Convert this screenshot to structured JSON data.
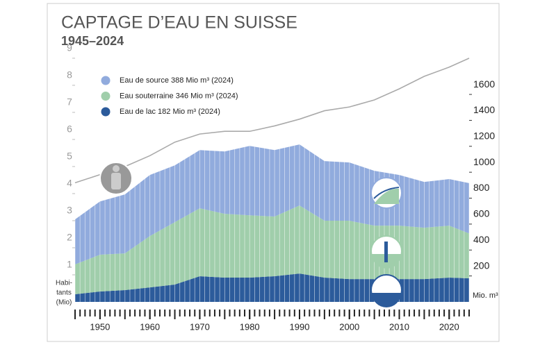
{
  "chart_data": {
    "type": "stacked_area",
    "title": "CAPTAGE D’EAU EN SUISSE",
    "subtitle": "1945–2024",
    "x": [
      1945,
      1950,
      1955,
      1960,
      1965,
      1970,
      1975,
      1980,
      1985,
      1990,
      1995,
      2000,
      2005,
      2010,
      2015,
      2020,
      2024
    ],
    "xlim": [
      1945,
      2024
    ],
    "xticks": [
      1950,
      1960,
      1970,
      1980,
      1990,
      2000,
      2010,
      2020
    ],
    "series": [
      {
        "name": "Eau de lac 182 Mio m³ (2024)",
        "color": "#2c5b9b",
        "values": [
          59,
          80,
          91,
          112,
          134,
          198,
          187,
          187,
          198,
          219,
          187,
          176,
          176,
          176,
          176,
          187,
          182
        ]
      },
      {
        "name": "Eau souterraine 346 Mio m³ (2024)",
        "color": "#a0ceab",
        "values": [
          230,
          284,
          283,
          396,
          481,
          524,
          492,
          481,
          460,
          524,
          439,
          450,
          412,
          412,
          396,
          401,
          346
        ]
      },
      {
        "name": "Eau de source 388 Mio m³ (2024)",
        "color": "#91abdd",
        "values": [
          347,
          411,
          455,
          471,
          438,
          449,
          481,
          535,
          513,
          471,
          460,
          449,
          423,
          391,
          353,
          359,
          388
        ]
      },
      {
        "name": "Habitants",
        "type": "line",
        "axis": "y2",
        "color": "#aaaaaa",
        "values": [
          4.4,
          4.7,
          5.0,
          5.4,
          5.9,
          6.2,
          6.3,
          6.3,
          6.5,
          6.75,
          7.06,
          7.2,
          7.46,
          7.87,
          8.33,
          8.67,
          9.0
        ]
      }
    ],
    "ylim": [
      0,
      1900
    ],
    "yticks": [
      200,
      400,
      600,
      800,
      1000,
      1200,
      1400,
      1600
    ],
    "ylabel": "Mio. m³",
    "y2lim": [
      0,
      9.1
    ],
    "y2ticks": [
      1,
      2,
      3,
      4,
      5,
      6,
      7,
      8,
      9
    ],
    "y2label_lines": [
      "Habi-",
      "tants",
      "(Mio)"
    ]
  }
}
